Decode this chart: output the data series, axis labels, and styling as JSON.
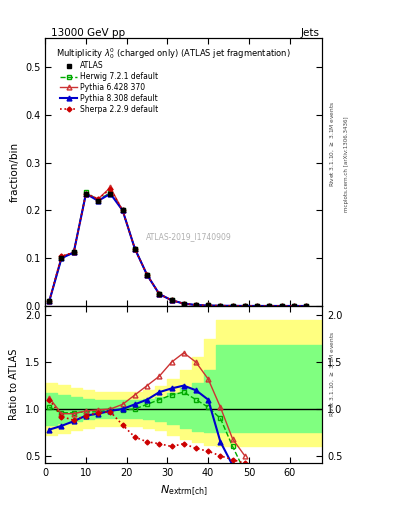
{
  "title_top": "13000 GeV pp",
  "title_right": "Jets",
  "main_title": "Multiplicity $\\lambda_0^0$ (charged only) (ATLAS jet fragmentation)",
  "xlabel": "$N_{\\mathrm{extrm[ch]}}$",
  "ylabel_main": "fraction/bin",
  "ylabel_ratio": "Ratio to ATLAS",
  "watermark": "ATLAS-2019_I1740909",
  "right_label1": "Rivet 3.1.10, $\\geq$ 3.1M events",
  "right_label2": "mcplots.cern.ch [arXiv:1306.3436]",
  "x_pts": [
    1,
    4,
    7,
    10,
    13,
    16,
    19,
    22,
    25,
    28,
    31,
    34,
    37,
    40,
    43,
    46,
    49,
    52,
    55,
    58,
    61,
    64
  ],
  "atlas_y": [
    0.01,
    0.1,
    0.112,
    0.235,
    0.22,
    0.235,
    0.2,
    0.12,
    0.065,
    0.025,
    0.012,
    0.005,
    0.002,
    0.001,
    0.0005,
    0.0003,
    0.0001,
    5e-05,
    2e-05,
    1e-05,
    5e-06,
    1e-06
  ],
  "herwig_y": [
    0.01,
    0.1,
    0.112,
    0.238,
    0.222,
    0.237,
    0.2,
    0.12,
    0.065,
    0.025,
    0.012,
    0.005,
    0.002,
    0.001,
    0.0005,
    0.0003,
    0.0001,
    5e-05,
    2e-05,
    1e-05,
    5e-06,
    1e-06
  ],
  "pythia6_y": [
    0.01,
    0.104,
    0.112,
    0.235,
    0.224,
    0.248,
    0.2,
    0.12,
    0.065,
    0.025,
    0.012,
    0.005,
    0.002,
    0.001,
    0.0005,
    0.0003,
    0.0001,
    5e-05,
    2e-05,
    1e-05,
    5e-06,
    1e-06
  ],
  "pythia8_y": [
    0.01,
    0.1,
    0.112,
    0.235,
    0.22,
    0.235,
    0.2,
    0.12,
    0.065,
    0.025,
    0.012,
    0.005,
    0.002,
    0.001,
    0.0005,
    0.0003,
    0.0001,
    5e-05,
    2e-05,
    1e-05,
    5e-06,
    1e-06
  ],
  "sherpa_y": [
    0.011,
    0.104,
    0.112,
    0.235,
    0.224,
    0.245,
    0.2,
    0.12,
    0.065,
    0.025,
    0.012,
    0.005,
    0.002,
    0.001,
    0.0005,
    0.0003,
    0.0001,
    5e-05,
    2e-05,
    1e-05,
    5e-06,
    1e-06
  ],
  "ratio_x": [
    1,
    4,
    7,
    10,
    13,
    16,
    19,
    22,
    25,
    28,
    31,
    34,
    37,
    40,
    43,
    46,
    49
  ],
  "herwig_r": [
    1.02,
    0.96,
    0.96,
    0.97,
    0.97,
    0.99,
    0.99,
    1.0,
    1.05,
    1.1,
    1.15,
    1.18,
    1.1,
    1.02,
    0.9,
    0.6,
    0.33
  ],
  "pythia6_r": [
    1.12,
    0.95,
    0.95,
    0.98,
    0.99,
    1.0,
    1.05,
    1.15,
    1.25,
    1.35,
    1.5,
    1.6,
    1.5,
    1.32,
    1.02,
    0.68,
    0.5
  ],
  "pythia8_r": [
    0.78,
    0.82,
    0.87,
    0.93,
    0.95,
    0.98,
    1.0,
    1.05,
    1.1,
    1.18,
    1.22,
    1.25,
    1.2,
    1.1,
    0.65,
    0.4,
    0.25
  ],
  "sherpa_r": [
    1.1,
    0.92,
    0.88,
    0.93,
    0.96,
    0.97,
    0.83,
    0.7,
    0.65,
    0.63,
    0.6,
    0.63,
    0.58,
    0.55,
    0.5,
    0.46,
    0.42
  ],
  "ylim_main": [
    0,
    0.56
  ],
  "ylim_ratio": [
    0.42,
    2.1
  ],
  "xlim": [
    0,
    68
  ],
  "yticks_main": [
    0.0,
    0.1,
    0.2,
    0.3,
    0.4,
    0.5
  ],
  "yticks_ratio": [
    0.5,
    1.0,
    1.5,
    2.0
  ],
  "color_herwig": "#00aa00",
  "color_pythia6": "#cc3333",
  "color_pythia8": "#0000cc",
  "color_sherpa": "#cc0000"
}
